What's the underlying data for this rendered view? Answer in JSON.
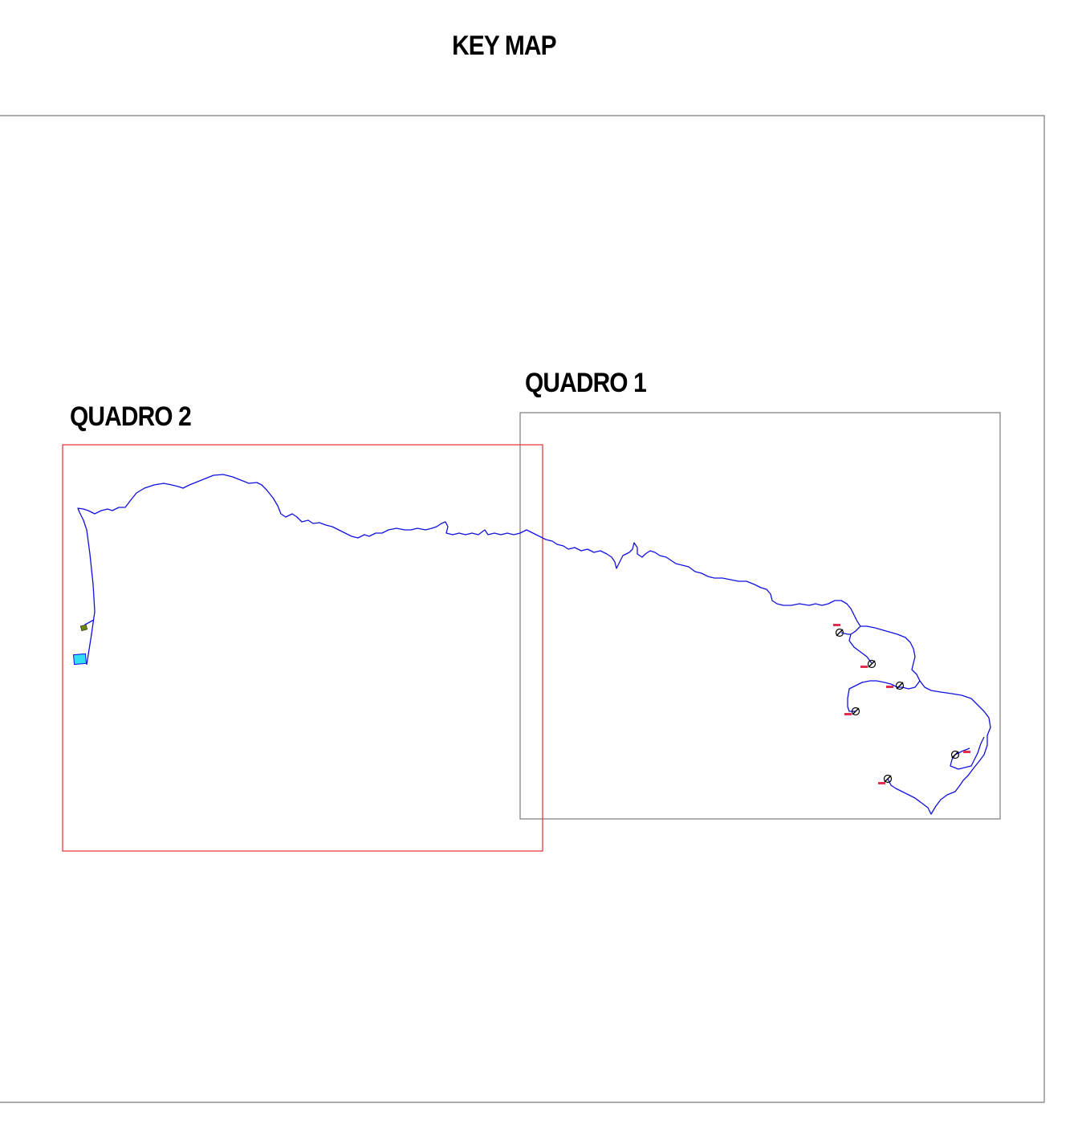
{
  "title": "KEY MAP",
  "quadro_1": {
    "label": "QUADRO 1"
  },
  "quadro_2": {
    "label": "QUADRO 2"
  },
  "colors": {
    "outer_frame": "#7a7a7a",
    "quadro_1_frame": "#7a7a7a",
    "quadro_2_frame": "#e03030",
    "route": "#1010e0",
    "tag": "#e03050",
    "tank": "#30e0f0",
    "small_tank": "#6a8a00",
    "valve": "#000000"
  },
  "icons": {
    "valve": "valve-symbol-icon",
    "tag": "red-tag-icon",
    "tank": "tank-icon"
  }
}
